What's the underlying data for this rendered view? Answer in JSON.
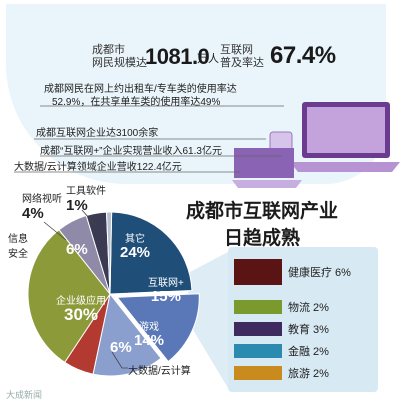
{
  "header": {
    "users_label_l1": "成都市",
    "users_label_l2": "网民规模达",
    "users_value": "1081.0",
    "users_unit": "万人",
    "rate_label_l1": "互联网",
    "rate_label_l2": "普及率达",
    "rate_value": "67.4%"
  },
  "facts": [
    "成都网民在网上约出租车/专车类的使用率达",
    "52.9%，在共享单车类的使用率达49%",
    "成都互联网企业达3100余家",
    "成都“互联网+”企业实现营业收入61.3亿元",
    "大数据/云计算领域企业营收122.4亿元"
  ],
  "title_l1": "成都市互联网产业",
  "title_l2": "日趋成熟",
  "watermark": "大成新闻",
  "colors": {
    "other": "#1f4e79",
    "internet_plus": "#5a78b8",
    "game": "#8a9fce",
    "bigdata": "#b23a30",
    "enterprise": "#8c9a3a",
    "security": "#8e8aa8",
    "video": "#3a3a52",
    "tools": "#b9c1cf",
    "health": "#5a1414",
    "logistics": "#7a9a2e",
    "education": "#3e2a5e",
    "finance": "#2a8ab0",
    "tourism": "#c98a1e"
  },
  "chart_data": {
    "type": "pie",
    "title": "成都市互联网产业日趋成熟",
    "slices": [
      {
        "label": "其它",
        "value": 24
      },
      {
        "label": "互联网+",
        "value": 15
      },
      {
        "label": "游戏",
        "value": 14
      },
      {
        "label": "大数据/云计算",
        "value": 6
      },
      {
        "label": "企业级应用",
        "value": 30
      },
      {
        "label": "信息安全",
        "value": 6
      },
      {
        "label": "网络视听",
        "value": 4
      },
      {
        "label": "工具软件",
        "value": 1
      }
    ],
    "sub_breakdown": {
      "parent": "互联网+",
      "items": [
        {
          "label": "健康医疗",
          "value": 6
        },
        {
          "label": "物流",
          "value": 2
        },
        {
          "label": "教育",
          "value": 3
        },
        {
          "label": "金融",
          "value": 2
        },
        {
          "label": "旅游",
          "value": 2
        }
      ]
    }
  },
  "labels": {
    "other_name": "其它",
    "other_pct": "24%",
    "iplus_name": "互联网+",
    "iplus_pct": "15%",
    "game_name": "游戏",
    "game_pct": "14%",
    "bigdata_pct": "6%",
    "bigdata_name": "大数据/云计算",
    "ent_name": "企业级应用",
    "ent_pct": "30%",
    "sec_name_l1": "信息",
    "sec_name_l2": "安全",
    "sec_pct": "6%",
    "video_name": "网络视听",
    "video_pct": "4%",
    "tools_name": "工具软件",
    "tools_pct": "1%"
  },
  "legend": [
    {
      "label": "健康医疗 6%"
    },
    {
      "label": "物流 2%"
    },
    {
      "label": "教育 3%"
    },
    {
      "label": "金融 2%"
    },
    {
      "label": "旅游 2%"
    }
  ]
}
